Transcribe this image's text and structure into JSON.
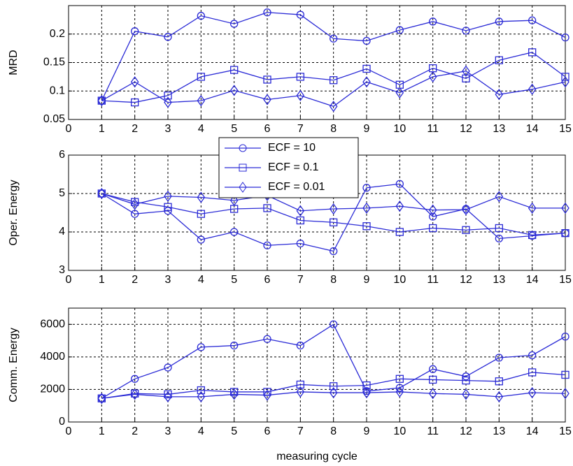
{
  "chart_data": [
    {
      "type": "line",
      "ylabel": "MRD",
      "x": [
        1,
        2,
        3,
        4,
        5,
        6,
        7,
        8,
        9,
        10,
        11,
        12,
        13,
        14,
        15
      ],
      "xlim": [
        0,
        15
      ],
      "xticks": [
        0,
        1,
        2,
        3,
        4,
        5,
        6,
        7,
        8,
        9,
        10,
        11,
        12,
        13,
        14,
        15
      ],
      "ylim": [
        0.05,
        0.25
      ],
      "yticks": [
        0.05,
        0.1,
        0.15,
        0.2
      ],
      "grid": true,
      "series": [
        {
          "marker": "circle",
          "color": "#2b2bd6",
          "values": [
            0.083,
            0.205,
            0.195,
            0.232,
            0.218,
            0.238,
            0.234,
            0.192,
            0.188,
            0.207,
            0.222,
            0.206,
            0.222,
            0.224,
            0.194
          ]
        },
        {
          "marker": "square",
          "color": "#2b2bd6",
          "values": [
            0.083,
            0.08,
            0.092,
            0.125,
            0.137,
            0.12,
            0.125,
            0.119,
            0.139,
            0.111,
            0.14,
            0.122,
            0.154,
            0.168,
            0.125
          ]
        },
        {
          "marker": "diamond",
          "color": "#2b2bd6",
          "values": [
            0.083,
            0.116,
            0.08,
            0.083,
            0.101,
            0.085,
            0.092,
            0.073,
            0.116,
            0.097,
            0.125,
            0.135,
            0.094,
            0.103,
            0.116
          ]
        }
      ]
    },
    {
      "type": "line",
      "ylabel": "Oper. Energy",
      "x": [
        1,
        2,
        3,
        4,
        5,
        6,
        7,
        8,
        9,
        10,
        11,
        12,
        13,
        14,
        15
      ],
      "xlim": [
        0,
        15
      ],
      "xticks": [
        0,
        1,
        2,
        3,
        4,
        5,
        6,
        7,
        8,
        9,
        10,
        11,
        12,
        13,
        14,
        15
      ],
      "ylim": [
        3,
        6
      ],
      "yticks": [
        3,
        4,
        5,
        6
      ],
      "grid": true,
      "legend": "top",
      "series": [
        {
          "name": "ECF = 10",
          "marker": "circle",
          "color": "#2b2bd6",
          "values": [
            5,
            4.47,
            4.55,
            3.8,
            4,
            3.65,
            3.7,
            3.5,
            5.15,
            5.25,
            4.4,
            4.6,
            3.83,
            3.9,
            3.97
          ]
        },
        {
          "name": "ECF = 0.1",
          "marker": "square",
          "color": "#2b2bd6",
          "values": [
            5,
            4.78,
            4.65,
            4.47,
            4.6,
            4.62,
            4.3,
            4.25,
            4.15,
            4.0,
            4.1,
            4.05,
            4.1,
            3.92,
            3.97
          ]
        },
        {
          "name": "ECF = 0.01",
          "marker": "diamond",
          "color": "#2b2bd6",
          "values": [
            5,
            4.72,
            4.93,
            4.9,
            4.82,
            4.95,
            4.55,
            4.6,
            4.62,
            4.67,
            4.57,
            4.58,
            4.92,
            4.62,
            4.62
          ]
        }
      ]
    },
    {
      "type": "line",
      "ylabel": "Comm. Energy",
      "xlabel": "measuring cycle",
      "x": [
        1,
        2,
        3,
        4,
        5,
        6,
        7,
        8,
        9,
        10,
        11,
        12,
        13,
        14,
        15
      ],
      "xlim": [
        0,
        15
      ],
      "xticks": [
        0,
        1,
        2,
        3,
        4,
        5,
        6,
        7,
        8,
        9,
        10,
        11,
        12,
        13,
        14,
        15
      ],
      "ylim": [
        0,
        7000
      ],
      "yticks": [
        0,
        2000,
        4000,
        6000
      ],
      "grid": true,
      "series": [
        {
          "marker": "circle",
          "color": "#2b2bd6",
          "values": [
            1450,
            2650,
            3350,
            4600,
            4700,
            5100,
            4700,
            6000,
            1900,
            2100,
            3250,
            2800,
            3950,
            4100,
            5250
          ]
        },
        {
          "marker": "square",
          "color": "#2b2bd6",
          "values": [
            1450,
            1750,
            1700,
            1950,
            1850,
            1850,
            2300,
            2200,
            2250,
            2650,
            2600,
            2550,
            2500,
            3050,
            2900
          ]
        },
        {
          "marker": "diamond",
          "color": "#2b2bd6",
          "values": [
            1450,
            1700,
            1550,
            1550,
            1700,
            1650,
            1850,
            1800,
            1800,
            1850,
            1750,
            1700,
            1550,
            1800,
            1750
          ]
        }
      ]
    }
  ]
}
